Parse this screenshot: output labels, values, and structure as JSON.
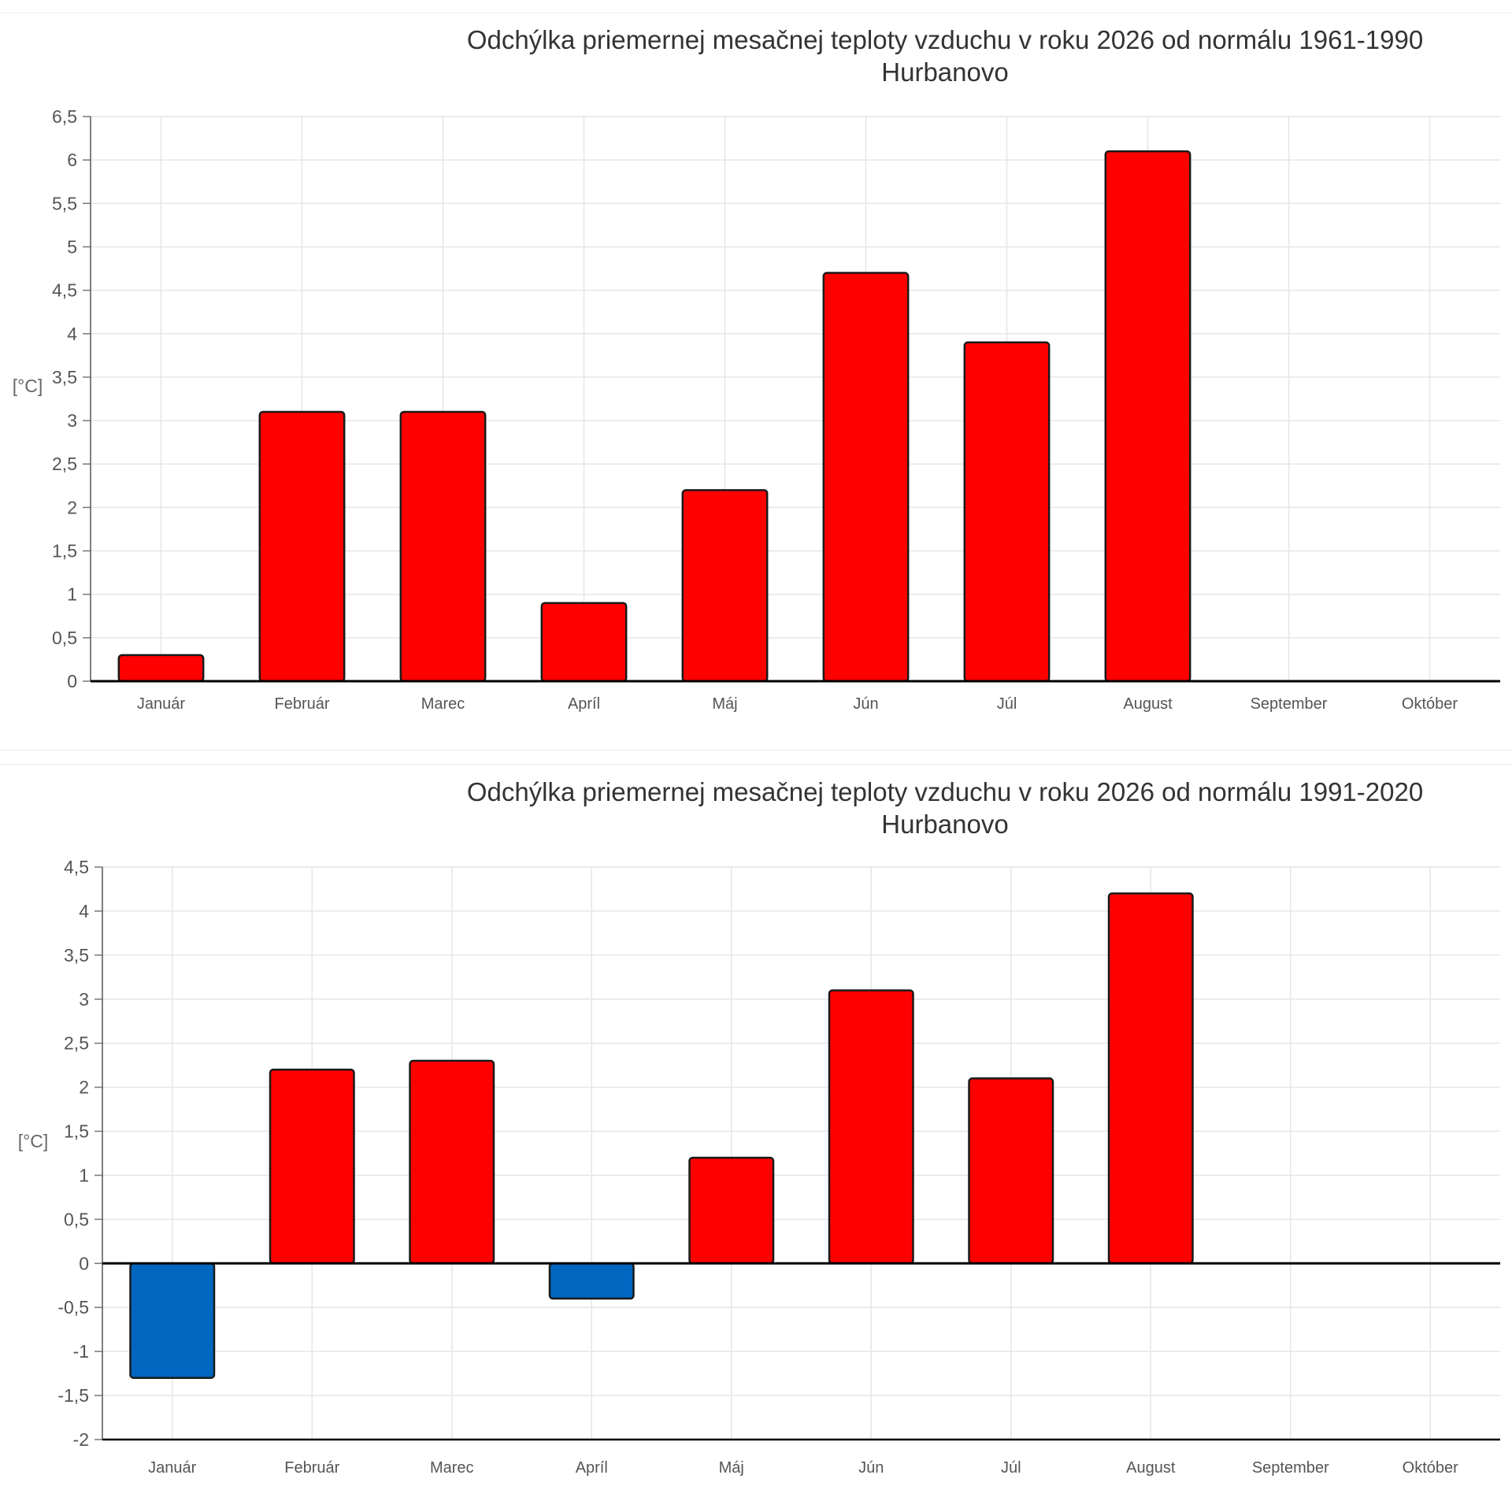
{
  "colors": {
    "positive": "#ff0000",
    "negative": "#0066c0",
    "grid": "#e6e6e6",
    "axis": "#000000",
    "text": "#333333",
    "tick": "#555555"
  },
  "chart_data": [
    {
      "type": "bar",
      "title": "Odchýlka priemernej mesačnej teploty vzduchu v roku 2026 od normálu 1961-1990",
      "subtitle": "Hurbanovo",
      "ylabel": "[°C]",
      "ylim": [
        0,
        6.5
      ],
      "yticks": [
        "0",
        "0,5",
        "1",
        "1,5",
        "2",
        "2,5",
        "3",
        "3,5",
        "4",
        "4,5",
        "5",
        "5,5",
        "6",
        "6,5"
      ],
      "categories": [
        "Január",
        "Február",
        "Marec",
        "Apríl",
        "Máj",
        "Jún",
        "Júl",
        "August",
        "September",
        "Október"
      ],
      "values": [
        0.3,
        3.1,
        3.1,
        0.9,
        2.2,
        4.7,
        3.9,
        6.1,
        null,
        null
      ],
      "grid": true
    },
    {
      "type": "bar",
      "title": "Odchýlka priemernej mesačnej teploty vzduchu v roku 2026 od normálu 1991-2020",
      "subtitle": "Hurbanovo",
      "ylabel": "[°C]",
      "ylim": [
        -2,
        4.5
      ],
      "yticks": [
        "-2",
        "-1,5",
        "-1",
        "-0,5",
        "0",
        "0,5",
        "1",
        "1,5",
        "2",
        "2,5",
        "3",
        "3,5",
        "4",
        "4,5"
      ],
      "categories": [
        "Január",
        "Február",
        "Marec",
        "Apríl",
        "Máj",
        "Jún",
        "Júl",
        "August",
        "September",
        "Október"
      ],
      "values": [
        -1.3,
        2.2,
        2.3,
        -0.4,
        1.2,
        3.1,
        2.1,
        4.2,
        null,
        null
      ],
      "grid": true
    }
  ]
}
